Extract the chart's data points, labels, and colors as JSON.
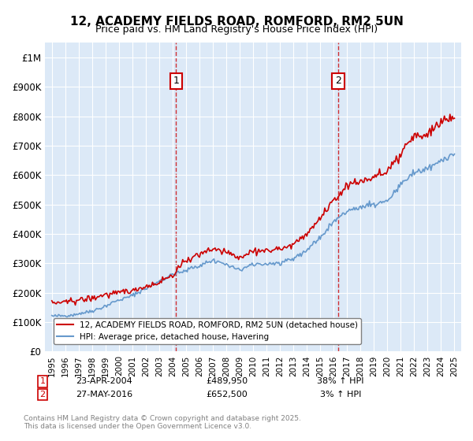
{
  "title": "12, ACADEMY FIELDS ROAD, ROMFORD, RM2 5UN",
  "subtitle": "Price paid vs. HM Land Registry's House Price Index (HPI)",
  "ylabel": "",
  "ylim": [
    0,
    1050000
  ],
  "yticks": [
    0,
    100000,
    200000,
    300000,
    400000,
    500000,
    600000,
    700000,
    800000,
    900000,
    1000000
  ],
  "ytick_labels": [
    "£0",
    "£100K",
    "£200K",
    "£300K",
    "£400K",
    "£500K",
    "£600K",
    "£700K",
    "£800K",
    "£900K",
    "£1M"
  ],
  "x_start_year": 1995,
  "x_end_year": 2025,
  "background_color": "#dce9f7",
  "plot_bg_color": "#dce9f7",
  "line1_color": "#cc0000",
  "line2_color": "#6699cc",
  "line1_label": "12, ACADEMY FIELDS ROAD, ROMFORD, RM2 5UN (detached house)",
  "line2_label": "HPI: Average price, detached house, Havering",
  "marker1_date": "2004-04",
  "marker1_price": 489950,
  "marker1_label": "1",
  "marker2_date": "2016-05",
  "marker2_price": 652500,
  "marker2_label": "2",
  "annotation1_date": "23-APR-2004",
  "annotation1_price": "£489,950",
  "annotation1_pct": "38% ↑ HPI",
  "annotation2_date": "27-MAY-2016",
  "annotation2_price": "£652,500",
  "annotation2_pct": "3% ↑ HPI",
  "footer": "Contains HM Land Registry data © Crown copyright and database right 2025.\nThis data is licensed under the Open Government Licence v3.0.",
  "hpi_data": {
    "years": [
      1995,
      1996,
      1997,
      1998,
      1999,
      2000,
      2001,
      2002,
      2003,
      2004,
      2005,
      2006,
      2007,
      2008,
      2009,
      2010,
      2011,
      2012,
      2013,
      2014,
      2015,
      2016,
      2017,
      2018,
      2019,
      2020,
      2021,
      2022,
      2023,
      2024,
      2025
    ],
    "hpi_values": [
      120000,
      122000,
      128000,
      138000,
      155000,
      175000,
      190000,
      215000,
      240000,
      262000,
      275000,
      292000,
      310000,
      295000,
      278000,
      295000,
      298000,
      300000,
      315000,
      345000,
      390000,
      440000,
      480000,
      490000,
      500000,
      510000,
      565000,
      610000,
      620000,
      650000,
      670000
    ],
    "house_values": [
      165000,
      168000,
      175000,
      182000,
      192000,
      200000,
      208000,
      220000,
      238000,
      260000,
      310000,
      330000,
      350000,
      338000,
      320000,
      340000,
      345000,
      348000,
      365000,
      400000,
      455000,
      510000,
      565000,
      580000,
      595000,
      608000,
      670000,
      730000,
      740000,
      780000,
      800000
    ]
  }
}
